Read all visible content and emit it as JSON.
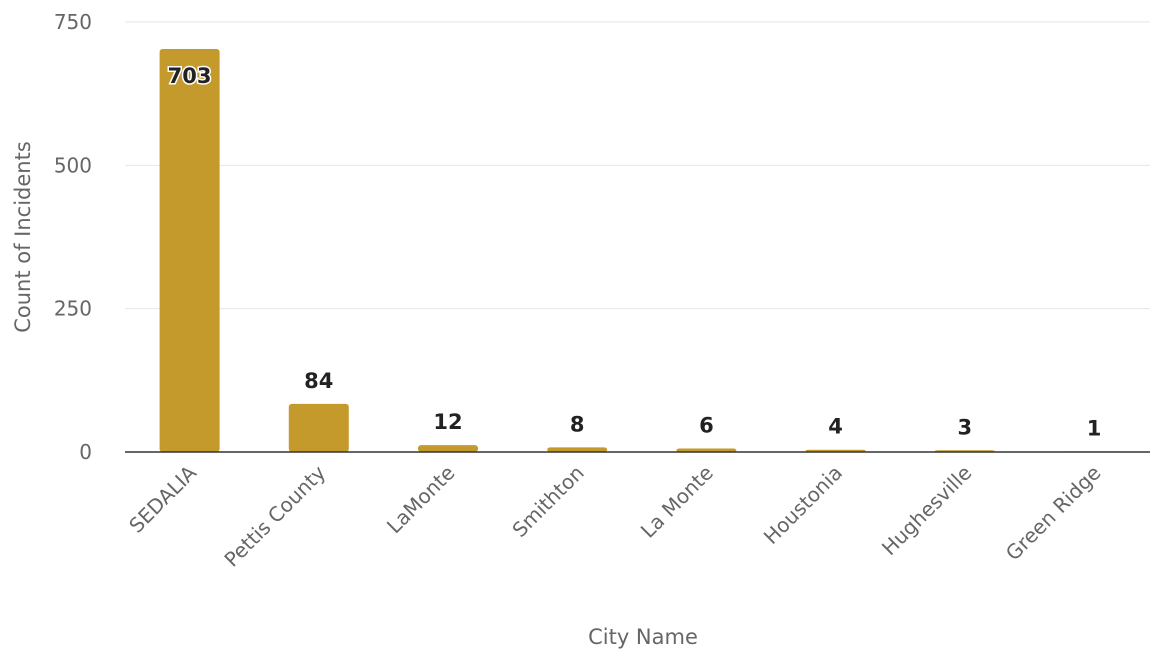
{
  "chart_data": {
    "type": "bar",
    "xlabel": "City Name",
    "ylabel": "Count of Incidents",
    "categories": [
      "SEDALIA",
      "Pettis County",
      "LaMonte",
      "Smithton",
      "La Monte",
      "Houstonia",
      "Hughesville",
      "Green Ridge"
    ],
    "values": [
      703,
      84,
      12,
      8,
      6,
      4,
      3,
      1
    ],
    "data_labels": [
      "703",
      "84",
      "12",
      "8",
      "6",
      "4",
      "3",
      "1"
    ],
    "ylim": [
      0,
      750
    ],
    "yticks": [
      0,
      250,
      500,
      750
    ],
    "ytick_labels": [
      "0",
      "250",
      "500",
      "750"
    ],
    "grid": true,
    "bar_color": "#C49A2C"
  }
}
